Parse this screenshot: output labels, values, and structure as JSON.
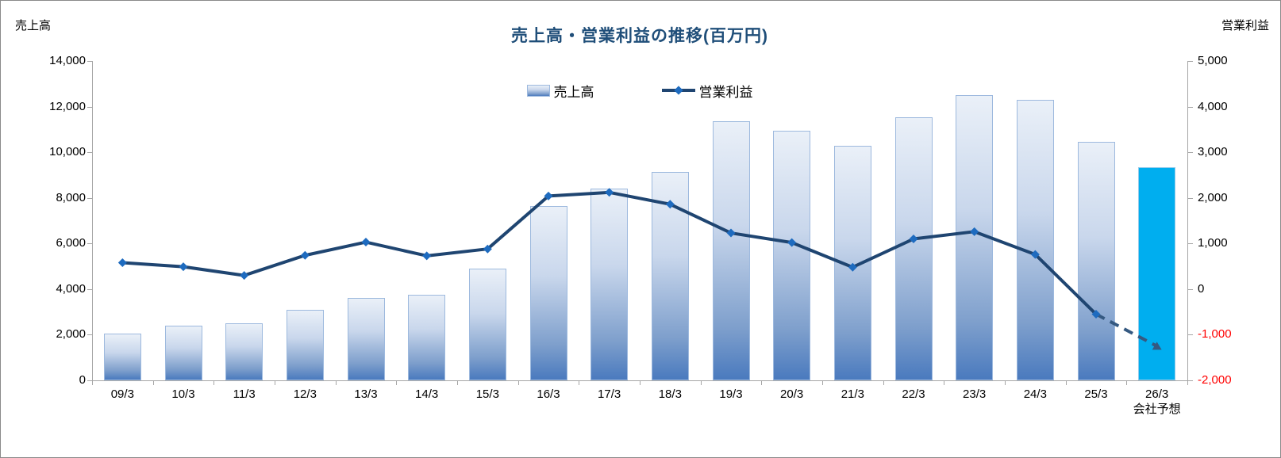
{
  "chart": {
    "title": "売上高・営業利益の推移(百万円)",
    "left_axis_title": "売上高",
    "right_axis_title": "営業利益",
    "legend": {
      "sales_label": "売上高",
      "profit_label": "営業利益"
    }
  },
  "chart_data": {
    "type": "bar",
    "combo": "bar+line",
    "title": "売上高・営業利益の推移(百万円)",
    "unit": "百万円",
    "categories": [
      "09/3",
      "10/3",
      "11/3",
      "12/3",
      "13/3",
      "14/3",
      "15/3",
      "16/3",
      "17/3",
      "18/3",
      "19/3",
      "20/3",
      "21/3",
      "22/3",
      "23/3",
      "24/3",
      "25/3",
      "26/3"
    ],
    "forecast_category_index": 17,
    "forecast_note": "会社予想",
    "series": [
      {
        "name": "売上高",
        "type": "bar",
        "axis": "left",
        "values": [
          2050,
          2400,
          2500,
          3100,
          3600,
          3750,
          4900,
          7650,
          8400,
          9130,
          11350,
          10950,
          10280,
          11550,
          12500,
          12300,
          10450,
          9350
        ]
      },
      {
        "name": "営業利益",
        "type": "line",
        "axis": "right",
        "values": [
          580,
          490,
          300,
          740,
          1030,
          730,
          880,
          2040,
          2120,
          1860,
          1230,
          1020,
          480,
          1100,
          1260,
          760,
          -550,
          -1250
        ],
        "forecast_last_point": true
      }
    ],
    "left_axis": {
      "label": "売上高",
      "min": 0,
      "max": 14000,
      "step": 2000
    },
    "right_axis": {
      "label": "営業利益",
      "min": -2000,
      "max": 5000,
      "step": 1000
    },
    "legend_position": "top-center",
    "gridlines": false
  },
  "colors": {
    "title": "#1F4E79",
    "bar_gradient_top": "#EAF0F8",
    "bar_gradient_bottom": "#4A7ABE",
    "bar_border": "#9DB9DE",
    "forecast_bar": "#00AEEF",
    "forecast_bar_border": "#96CBEA",
    "line": "#1F4571",
    "marker": "#1E6BBF",
    "forecast_line": "#355981",
    "negative_tick": "#FF0000",
    "axis": "#A6A6A6",
    "canvas_border": "#8A8A8A"
  }
}
